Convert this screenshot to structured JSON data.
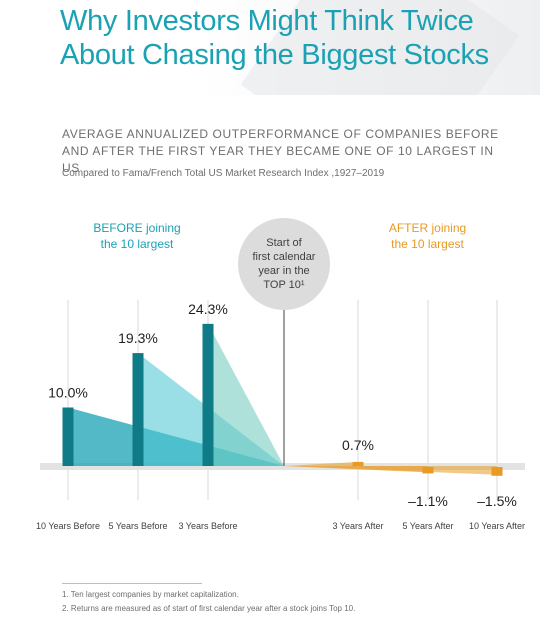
{
  "header": {
    "title_line1": "Why Investors Might Think Twice",
    "title_line2": "About Chasing the Biggest Stocks"
  },
  "subtitle": {
    "line1": "AVERAGE ANNUALIZED OUTPERFORMANCE OF COMPANIES BEFORE",
    "line2": "AND AFTER THE FIRST YEAR THEY BECAME ONE OF 10 LARGEST IN US"
  },
  "source": "Compared to Fama/French Total US Market Research Index ,1927–2019",
  "labels": {
    "before_line1": "BEFORE joining",
    "before_line2": "the 10 largest",
    "after_line1": "AFTER joining",
    "after_line2": "the 10 largest",
    "circle_line1": "Start of",
    "circle_line2": "first calendar",
    "circle_line3": "year in the",
    "circle_line4": "TOP 10¹"
  },
  "colors": {
    "teal": "#1aa2b4",
    "teal_dark": "#0e7b87",
    "orange": "#e89a24",
    "gray": "#6d6e71"
  },
  "chart_data": {
    "type": "bar",
    "title": "",
    "xlabel": "",
    "ylabel": "",
    "categories": [
      "10 Years Before",
      "5 Years Before",
      "3 Years Before",
      "3 Years After",
      "5 Years After",
      "10 Years After"
    ],
    "values": [
      10.0,
      19.3,
      24.3,
      0.7,
      -1.1,
      -1.5
    ],
    "value_labels": [
      "10.0%",
      "19.3%",
      "24.3%",
      "0.7%",
      "–1.1%",
      "–1.5%"
    ],
    "groups": [
      "before",
      "before",
      "before",
      "after",
      "after",
      "after"
    ],
    "ylim": [
      -2,
      26
    ],
    "grid": true
  },
  "footnotes": [
    "1.  Ten largest companies by market capitalization.",
    "2.  Returns are measured as of start of first calendar year after a stock joins Top 10."
  ]
}
